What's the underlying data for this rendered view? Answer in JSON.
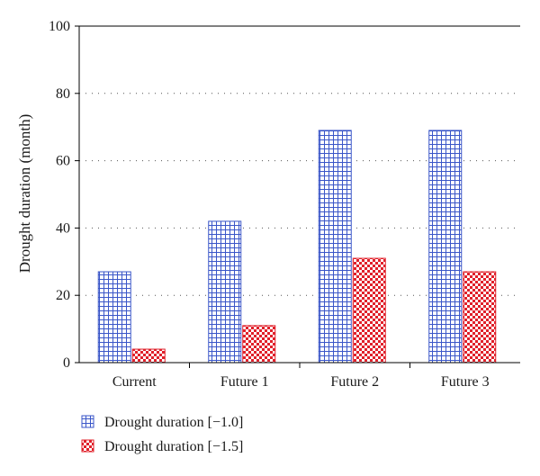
{
  "chart_data": {
    "type": "bar",
    "categories": [
      "Current",
      "Future 1",
      "Future 2",
      "Future 3"
    ],
    "series": [
      {
        "name": "Drought duration [−1.0]",
        "values": [
          27,
          42,
          69,
          69
        ],
        "color": "#3a56c8",
        "pattern": "grid"
      },
      {
        "name": "Drought duration [−1.5]",
        "values": [
          4,
          11,
          31,
          27
        ],
        "color": "#e0202a",
        "pattern": "checker"
      }
    ],
    "title": "",
    "xlabel": "",
    "ylabel": "Drought duration (month)",
    "ylim": [
      0,
      100
    ],
    "yticks": [
      "0",
      "20",
      "40",
      "60",
      "80",
      "100"
    ],
    "grid": "horizontal dotted",
    "legend": "bottom-left"
  }
}
